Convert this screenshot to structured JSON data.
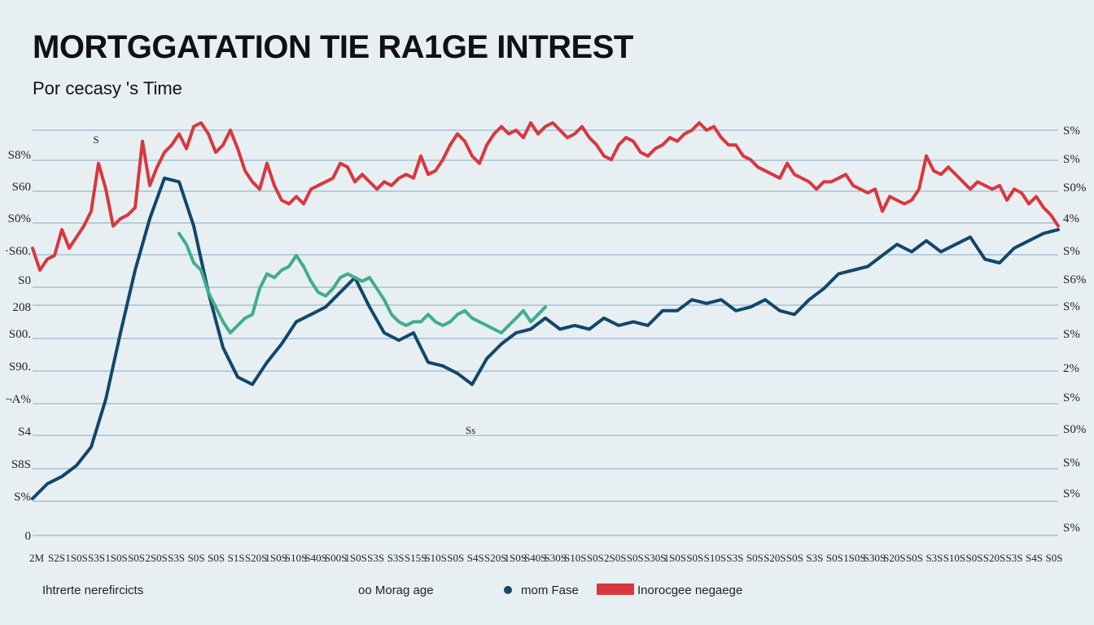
{
  "chart_data": {
    "type": "line",
    "title": "MORTGGATATION TIE RA1GE INTREST",
    "subtitle": "Por cecasy 's Time",
    "y_ticks_left": [
      "S8%",
      "S60",
      "S0%",
      "·S60.",
      "S0",
      "208",
      "S00.",
      "S90.",
      "¬A%",
      "S4",
      "S8S",
      "S%",
      "0"
    ],
    "y_ticks_right": [
      "S%",
      "S%",
      "S0%",
      "4%",
      "S%",
      "S6%",
      "S%",
      "S%",
      "2%",
      "S%",
      "S0%",
      "S%",
      "S%",
      "S%"
    ],
    "x_ticks": [
      "2M",
      "S2S",
      "1S0S",
      "S3S",
      "1S0S",
      "S0S",
      "2S0S",
      "S3S",
      "S0S",
      "S0S",
      "S1S",
      "S20S",
      "1S0S",
      "S10S",
      "S40S",
      "S00S",
      "1S0S",
      "S3S",
      "S3S",
      "S15S",
      "S10S",
      "S0S",
      "S4S",
      "S20S",
      "1S0S",
      "S40S",
      "S30S",
      "S10S",
      "S0S",
      "2S0S",
      "S0S",
      "S30S",
      "1S0S",
      "S0S",
      "S10S",
      "S3S",
      "S0S",
      "S20S",
      "S0S",
      "S3S",
      "S0S",
      "1S0S",
      "S30S",
      "S20S",
      "S0S",
      "S3S",
      "S10S",
      "S0S",
      "S20S",
      "S3S",
      "S4S",
      "S0S"
    ],
    "legend": [
      "Ihtrerte nerefircicts",
      "oo Morag age",
      "mom Fase",
      "Inorocgee negaege"
    ],
    "annotations": [
      "S",
      "Ss"
    ],
    "colors": {
      "red": "#d9373f",
      "navy": "#12476b",
      "teal": "#3fae8c",
      "grid": "#5b8fb4",
      "background": "#e8eff2"
    },
    "y_range": [
      0,
      100
    ],
    "series": [
      {
        "color_key": "red",
        "x": [
          0,
          1,
          2,
          3,
          4,
          5,
          6,
          7,
          8,
          9,
          10,
          11,
          12,
          13,
          14,
          15,
          16,
          17,
          18,
          19,
          20,
          21,
          22,
          23,
          24,
          25,
          26,
          27,
          28,
          29,
          30,
          31,
          32,
          33,
          34,
          35,
          36,
          37,
          38,
          39,
          40,
          41,
          42,
          43,
          44,
          45,
          46,
          47,
          48,
          49,
          50,
          51,
          52,
          53,
          54,
          55,
          56,
          57,
          58,
          59,
          60,
          61,
          62,
          63,
          64,
          65,
          66,
          67,
          68,
          69,
          70,
          71,
          72,
          73,
          74,
          75,
          76,
          77,
          78,
          79,
          80,
          81,
          82,
          83,
          84,
          85,
          86,
          87,
          88,
          89,
          90,
          91,
          92,
          93,
          94,
          95,
          96,
          97,
          98,
          99,
          100,
          101,
          102,
          103,
          104,
          105,
          106,
          107,
          108,
          109,
          110,
          111,
          112,
          113,
          114,
          115,
          116,
          117,
          118,
          119,
          120,
          121,
          122,
          123,
          124,
          125,
          126,
          127,
          128,
          129,
          130,
          131,
          132,
          133,
          134,
          135,
          136,
          137,
          138,
          139,
          140
        ],
        "y": [
          78,
          72,
          75,
          76,
          83,
          78,
          81,
          84,
          88,
          101,
          94,
          84,
          86,
          87,
          89,
          107,
          95,
          100,
          104,
          106,
          109,
          105,
          111,
          112,
          109,
          104,
          106,
          110,
          105,
          99,
          96,
          94,
          101,
          95,
          91,
          90,
          92,
          90,
          94,
          95,
          96,
          97,
          101,
          100,
          96,
          98,
          96,
          94,
          96,
          95,
          97,
          98,
          97,
          103,
          98,
          99,
          102,
          106,
          109,
          107,
          103,
          101,
          106,
          109,
          111,
          109,
          110,
          108,
          112,
          109,
          111,
          112,
          110,
          108,
          109,
          111,
          108,
          106,
          103,
          102,
          106,
          108,
          107,
          104,
          103,
          105,
          106,
          108,
          107,
          109,
          110,
          112,
          110,
          111,
          108,
          106,
          106,
          103,
          102,
          100,
          99,
          98,
          97,
          101,
          98,
          97,
          96,
          94,
          96,
          96,
          97,
          98,
          95,
          94,
          93,
          94,
          88,
          92,
          91,
          90,
          91,
          94,
          103,
          99,
          98,
          100,
          98,
          96,
          94,
          96,
          95,
          94,
          95,
          91,
          94,
          93,
          90,
          92,
          89,
          87,
          84
        ]
      },
      {
        "color_key": "navy",
        "x": [
          0,
          2,
          4,
          6,
          8,
          10,
          12,
          14,
          16,
          18,
          20,
          22,
          24,
          26,
          28,
          30,
          32,
          34,
          36,
          38,
          40,
          42,
          44,
          46,
          48,
          50,
          52,
          54,
          56,
          58,
          60,
          62,
          64,
          66,
          68,
          70,
          72,
          74,
          76,
          78,
          80,
          82,
          84,
          86,
          88,
          90,
          92,
          94,
          96,
          98,
          100,
          102,
          104,
          106,
          108,
          110,
          112,
          114,
          116,
          118,
          120,
          122,
          124,
          126,
          128,
          130,
          132,
          134,
          136,
          138,
          140
        ],
        "y": [
          10,
          14,
          16,
          19,
          24,
          37,
          55,
          72,
          86,
          97,
          96,
          84,
          66,
          51,
          43,
          41,
          47,
          52,
          58,
          60,
          62,
          66,
          70,
          62,
          55,
          53,
          55,
          47,
          46,
          44,
          41,
          48,
          52,
          55,
          56,
          59,
          56,
          57,
          56,
          59,
          57,
          58,
          57,
          61,
          61,
          64,
          63,
          64,
          61,
          62,
          64,
          61,
          60,
          64,
          67,
          71,
          72,
          73,
          76,
          79,
          77,
          80,
          77,
          79,
          81,
          75,
          74,
          78,
          80,
          82,
          83
        ]
      },
      {
        "color_key": "teal",
        "x": [
          20,
          21,
          22,
          23,
          24,
          25,
          26,
          27,
          28,
          29,
          30,
          31,
          32,
          33,
          34,
          35,
          36,
          37,
          38,
          39,
          40,
          41,
          42,
          43,
          44,
          45,
          46,
          47,
          48,
          49,
          50,
          51,
          52,
          53,
          54,
          55,
          56,
          57,
          58,
          59,
          60,
          61,
          62,
          63,
          64,
          65,
          66,
          67,
          68,
          69,
          70
        ],
        "y": [
          82,
          79,
          74,
          72,
          66,
          62,
          58,
          55,
          57,
          59,
          60,
          67,
          71,
          70,
          72,
          73,
          76,
          73,
          69,
          66,
          65,
          67,
          70,
          71,
          70,
          69,
          70,
          67,
          64,
          60,
          58,
          57,
          58,
          58,
          60,
          58,
          57,
          58,
          60,
          61,
          59,
          58,
          57,
          56,
          55,
          57,
          59,
          61,
          58,
          60,
          62
        ]
      }
    ]
  }
}
